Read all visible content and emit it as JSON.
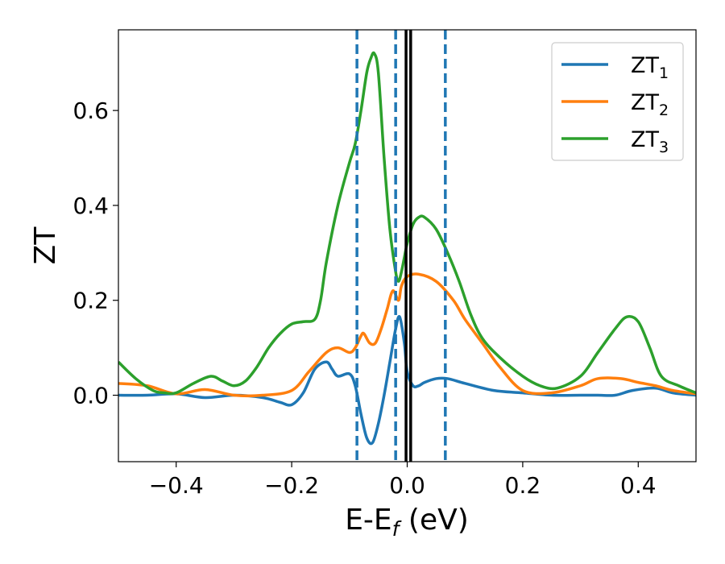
{
  "chart_data": {
    "type": "line",
    "title": "",
    "xlabel": "E-E",
    "xlabel_sub": "f",
    "xlabel_unit": " (eV)",
    "ylabel": "ZT",
    "xlim": [
      -0.5,
      0.5
    ],
    "ylim": [
      -0.14,
      0.77
    ],
    "xticks": [
      -0.4,
      -0.2,
      0.0,
      0.2,
      0.4
    ],
    "xtick_labels": [
      "−0.4",
      "−0.2",
      "0.0",
      "0.2",
      "0.4"
    ],
    "yticks": [
      0.0,
      0.2,
      0.4,
      0.6
    ],
    "ytick_labels": [
      "0.0",
      "0.2",
      "0.4",
      "0.6"
    ],
    "grid": false,
    "legend_position": "top-right",
    "vlines_dashed": [
      -0.087,
      -0.02,
      0.066
    ],
    "vlines_solid": [
      -0.002,
      0.006
    ],
    "colors": {
      "dashed": "#1f77b4",
      "solid": "#000000"
    },
    "series": [
      {
        "name": "ZT",
        "sub": "1",
        "color": "#1f77b4",
        "x": [
          -0.5,
          -0.45,
          -0.4,
          -0.35,
          -0.3,
          -0.25,
          -0.22,
          -0.2,
          -0.18,
          -0.16,
          -0.14,
          -0.13,
          -0.12,
          -0.1,
          -0.09,
          -0.08,
          -0.07,
          -0.06,
          -0.05,
          -0.04,
          -0.03,
          -0.02,
          -0.013,
          -0.005,
          0.0,
          0.01,
          0.02,
          0.03,
          0.05,
          0.07,
          0.1,
          0.15,
          0.2,
          0.25,
          0.3,
          0.33,
          0.36,
          0.39,
          0.43,
          0.46,
          0.5
        ],
        "y": [
          0.0,
          0.0,
          0.003,
          -0.005,
          0.0,
          -0.005,
          -0.015,
          -0.02,
          0.005,
          0.055,
          0.07,
          0.055,
          0.04,
          0.045,
          0.02,
          -0.04,
          -0.09,
          -0.1,
          -0.06,
          0.0,
          0.07,
          0.14,
          0.165,
          0.11,
          0.05,
          0.02,
          0.02,
          0.027,
          0.035,
          0.035,
          0.025,
          0.01,
          0.005,
          0.0,
          0.0,
          0.0,
          0.0,
          0.01,
          0.015,
          0.005,
          0.0
        ]
      },
      {
        "name": "ZT",
        "sub": "2",
        "color": "#ff7f0e",
        "x": [
          -0.5,
          -0.45,
          -0.4,
          -0.35,
          -0.3,
          -0.25,
          -0.2,
          -0.17,
          -0.14,
          -0.12,
          -0.1,
          -0.09,
          -0.08,
          -0.075,
          -0.065,
          -0.055,
          -0.045,
          -0.035,
          -0.025,
          -0.015,
          -0.01,
          0.0,
          0.02,
          0.05,
          0.08,
          0.1,
          0.13,
          0.16,
          0.2,
          0.25,
          0.3,
          0.33,
          0.37,
          0.4,
          0.43,
          0.46,
          0.5
        ],
        "y": [
          0.025,
          0.02,
          0.003,
          0.012,
          0.0,
          0.0,
          0.01,
          0.05,
          0.09,
          0.1,
          0.09,
          0.1,
          0.125,
          0.13,
          0.11,
          0.11,
          0.14,
          0.18,
          0.22,
          0.2,
          0.23,
          0.25,
          0.255,
          0.24,
          0.2,
          0.16,
          0.11,
          0.06,
          0.01,
          0.005,
          0.02,
          0.035,
          0.035,
          0.027,
          0.02,
          0.01,
          0.003
        ]
      },
      {
        "name": "ZT",
        "sub": "3",
        "color": "#2ca02c",
        "x": [
          -0.5,
          -0.47,
          -0.44,
          -0.42,
          -0.4,
          -0.37,
          -0.34,
          -0.32,
          -0.3,
          -0.28,
          -0.26,
          -0.24,
          -0.22,
          -0.2,
          -0.18,
          -0.16,
          -0.15,
          -0.14,
          -0.12,
          -0.1,
          -0.09,
          -0.08,
          -0.07,
          -0.063,
          -0.057,
          -0.05,
          -0.04,
          -0.03,
          -0.02,
          -0.015,
          -0.01,
          -0.005,
          0.0,
          0.01,
          0.02,
          0.03,
          0.05,
          0.07,
          0.09,
          0.11,
          0.13,
          0.16,
          0.2,
          0.23,
          0.26,
          0.3,
          0.33,
          0.36,
          0.38,
          0.4,
          0.42,
          0.44,
          0.47,
          0.5
        ],
        "y": [
          0.07,
          0.035,
          0.01,
          0.005,
          0.005,
          0.025,
          0.04,
          0.03,
          0.02,
          0.03,
          0.06,
          0.1,
          0.13,
          0.15,
          0.155,
          0.16,
          0.2,
          0.28,
          0.4,
          0.49,
          0.53,
          0.6,
          0.68,
          0.71,
          0.72,
          0.68,
          0.5,
          0.35,
          0.26,
          0.24,
          0.26,
          0.29,
          0.32,
          0.36,
          0.375,
          0.375,
          0.35,
          0.3,
          0.24,
          0.17,
          0.12,
          0.08,
          0.04,
          0.02,
          0.015,
          0.04,
          0.09,
          0.14,
          0.165,
          0.155,
          0.1,
          0.04,
          0.02,
          0.005
        ]
      }
    ]
  }
}
